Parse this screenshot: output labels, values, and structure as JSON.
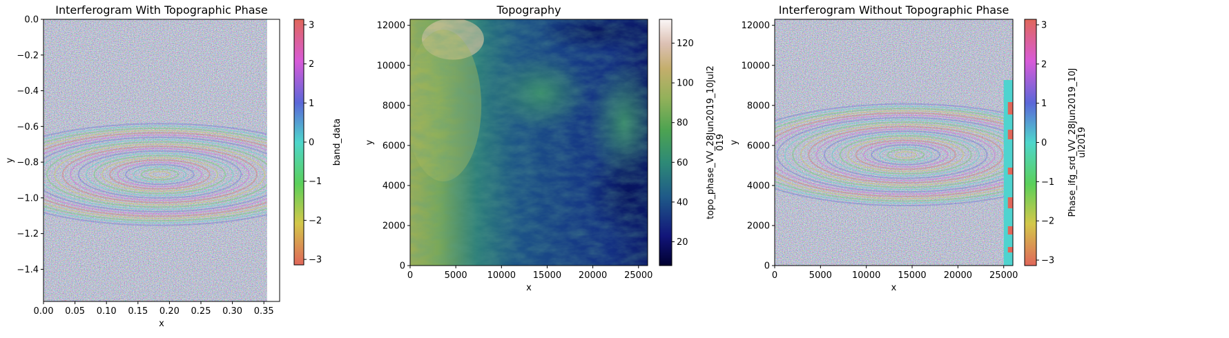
{
  "chart_data": [
    {
      "type": "heatmap",
      "title": "Interferogram With Topographic Phase",
      "xlabel": "x",
      "ylabel": "y",
      "xlim": [
        0.0,
        0.375
      ],
      "ylim": [
        -1.58,
        0.0
      ],
      "data_extent_x": [
        0.0,
        0.355
      ],
      "x_ticks": [
        "0.00",
        "0.05",
        "0.10",
        "0.15",
        "0.20",
        "0.25",
        "0.30",
        "0.35"
      ],
      "x_tick_values": [
        0.0,
        0.05,
        0.1,
        0.15,
        0.2,
        0.25,
        0.3,
        0.35
      ],
      "y_ticks": [
        "0.0",
        "−0.2",
        "−0.4",
        "−0.6",
        "−0.8",
        "−1.0",
        "−1.2",
        "−1.4"
      ],
      "y_tick_values": [
        0.0,
        -0.2,
        -0.4,
        -0.6,
        -0.8,
        -1.0,
        -1.2,
        -1.4
      ],
      "colorbar": {
        "label": "band_data",
        "colormap": "cyclic-hsv",
        "range": [
          -3.14,
          3.14
        ],
        "ticks": [
          "3",
          "2",
          "1",
          "0",
          "−1",
          "−2",
          "−3"
        ],
        "tick_values": [
          3,
          2,
          1,
          0,
          -1,
          -2,
          -3
        ]
      }
    },
    {
      "type": "heatmap",
      "title": "Topography",
      "xlabel": "x",
      "ylabel": "y",
      "xlim": [
        0,
        26000
      ],
      "ylim": [
        0,
        12300
      ],
      "x_ticks": [
        "0",
        "5000",
        "10000",
        "15000",
        "20000",
        "25000"
      ],
      "x_tick_values": [
        0,
        5000,
        10000,
        15000,
        20000,
        25000
      ],
      "y_ticks": [
        "12000",
        "10000",
        "8000",
        "6000",
        "4000",
        "2000",
        "0"
      ],
      "y_tick_values": [
        12000,
        10000,
        8000,
        6000,
        4000,
        2000,
        0
      ],
      "colorbar": {
        "label": "topo_phase_VV_28Jun2019_10Jul2\n019",
        "colormap": "gist_earth",
        "range": [
          8,
          132
        ],
        "ticks": [
          "120",
          "100",
          "80",
          "60",
          "40",
          "20"
        ],
        "tick_values": [
          120,
          100,
          80,
          60,
          40,
          20
        ]
      }
    },
    {
      "type": "heatmap",
      "title": "Interferogram Without Topographic Phase",
      "xlabel": "x",
      "ylabel": "y",
      "xlim": [
        0,
        26000
      ],
      "ylim": [
        0,
        12300
      ],
      "x_ticks": [
        "0",
        "5000",
        "10000",
        "15000",
        "20000",
        "25000"
      ],
      "x_tick_values": [
        0,
        5000,
        10000,
        15000,
        20000,
        25000
      ],
      "y_ticks": [
        "12000",
        "10000",
        "8000",
        "6000",
        "4000",
        "2000",
        "0"
      ],
      "y_tick_values": [
        12000,
        10000,
        8000,
        6000,
        4000,
        2000,
        0
      ],
      "colorbar": {
        "label": "Phase_ifg_srd_VV_28Jun2019_10J\nul2019",
        "colormap": "cyclic-hsv",
        "range": [
          -3.14,
          3.14
        ],
        "ticks": [
          "3",
          "2",
          "1",
          "0",
          "−1",
          "−2",
          "−3"
        ],
        "tick_values": [
          3,
          2,
          1,
          0,
          -1,
          -2,
          -3
        ]
      }
    }
  ]
}
